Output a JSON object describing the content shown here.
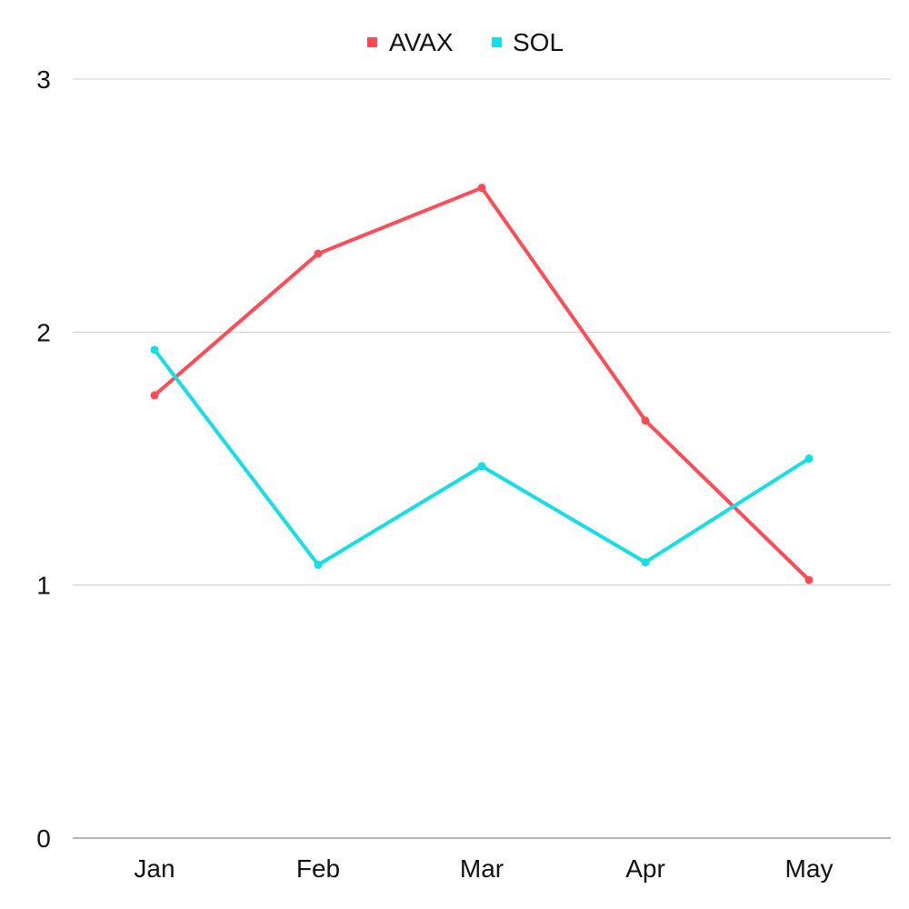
{
  "chart_data": {
    "type": "line",
    "categories": [
      "Jan",
      "Feb",
      "Mar",
      "Apr",
      "May"
    ],
    "series": [
      {
        "name": "AVAX",
        "color": "#ff4b55",
        "values": [
          1.75,
          2.31,
          2.57,
          1.65,
          1.02
        ]
      },
      {
        "name": "SOL",
        "color": "#12dfe6",
        "values": [
          1.93,
          1.08,
          1.47,
          1.09,
          1.5
        ]
      }
    ],
    "ylim": [
      0,
      3
    ],
    "yticks": [
      0,
      1,
      2,
      3
    ],
    "ytick_labels": [
      "0",
      "1",
      "2",
      "3"
    ],
    "xlabel": "",
    "ylabel": "",
    "grid": true,
    "legend_position": "top-center"
  }
}
